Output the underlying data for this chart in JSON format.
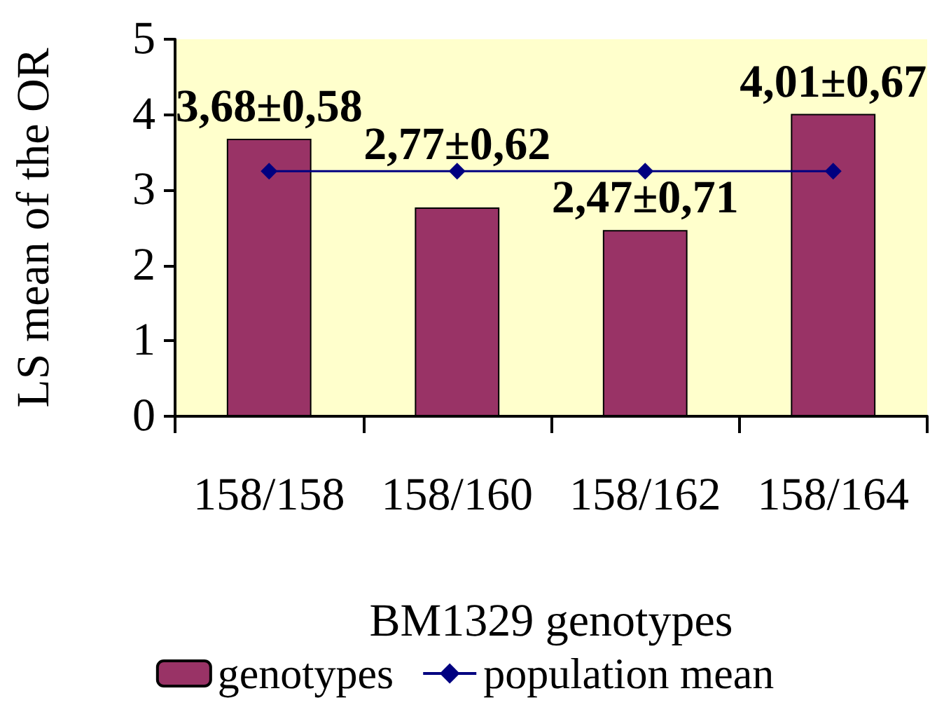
{
  "chart_data": {
    "type": "bar",
    "xlabel": "BM1329 genotypes",
    "ylabel": "LS mean of the OR",
    "categories": [
      "158/158",
      "158/160",
      "158/162",
      "158/164"
    ],
    "series": [
      {
        "name": "genotypes",
        "color": "#993366",
        "values": [
          3.68,
          2.77,
          2.47,
          4.01
        ],
        "value_labels": [
          "3,68±0,58",
          "2,77±0,62",
          "2,47±0,71",
          "4,01±0,67"
        ]
      },
      {
        "name": "population mean",
        "type": "line",
        "color": "#000080",
        "values": [
          3.25,
          3.25,
          3.25,
          3.25
        ]
      }
    ],
    "ylim": [
      0,
      5
    ],
    "yticks": [
      0,
      1,
      2,
      3,
      4,
      5
    ],
    "legend": "bottom",
    "marker": "diamond"
  }
}
